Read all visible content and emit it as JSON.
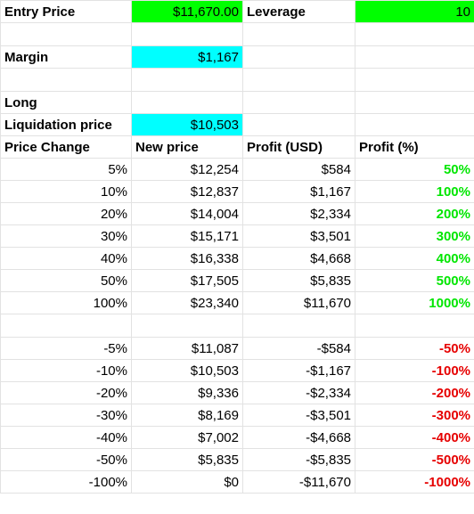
{
  "header": {
    "entry_price_label": "Entry Price",
    "entry_price_value": "$11,670.00",
    "leverage_label": "Leverage",
    "leverage_value": "10",
    "margin_label": "Margin",
    "margin_value": "$1,167",
    "position_label": "Long",
    "liquidation_label": "Liquidation price",
    "liquidation_value": "$10,503"
  },
  "columns": {
    "price_change": "Price Change",
    "new_price": "New price",
    "profit_usd": "Profit (USD)",
    "profit_pct": "Profit (%)"
  },
  "colors": {
    "entry_bg": "#00ff00",
    "margin_bg": "#00ffff",
    "profit": "#00e600",
    "loss": "#e60000"
  },
  "gains": [
    {
      "change": "5%",
      "price": "$12,254",
      "usd": "$584",
      "pct": "50%"
    },
    {
      "change": "10%",
      "price": "$12,837",
      "usd": "$1,167",
      "pct": "100%"
    },
    {
      "change": "20%",
      "price": "$14,004",
      "usd": "$2,334",
      "pct": "200%"
    },
    {
      "change": "30%",
      "price": "$15,171",
      "usd": "$3,501",
      "pct": "300%"
    },
    {
      "change": "40%",
      "price": "$16,338",
      "usd": "$4,668",
      "pct": "400%"
    },
    {
      "change": "50%",
      "price": "$17,505",
      "usd": "$5,835",
      "pct": "500%"
    },
    {
      "change": "100%",
      "price": "$23,340",
      "usd": "$11,670",
      "pct": "1000%"
    }
  ],
  "losses": [
    {
      "change": "-5%",
      "price": "$11,087",
      "usd": "-$584",
      "pct": "-50%"
    },
    {
      "change": "-10%",
      "price": "$10,503",
      "usd": "-$1,167",
      "pct": "-100%"
    },
    {
      "change": "-20%",
      "price": "$9,336",
      "usd": "-$2,334",
      "pct": "-200%"
    },
    {
      "change": "-30%",
      "price": "$8,169",
      "usd": "-$3,501",
      "pct": "-300%"
    },
    {
      "change": "-40%",
      "price": "$7,002",
      "usd": "-$4,668",
      "pct": "-400%"
    },
    {
      "change": "-50%",
      "price": "$5,835",
      "usd": "-$5,835",
      "pct": "-500%"
    },
    {
      "change": "-100%",
      "price": "$0",
      "usd": "-$11,670",
      "pct": "-1000%"
    }
  ]
}
